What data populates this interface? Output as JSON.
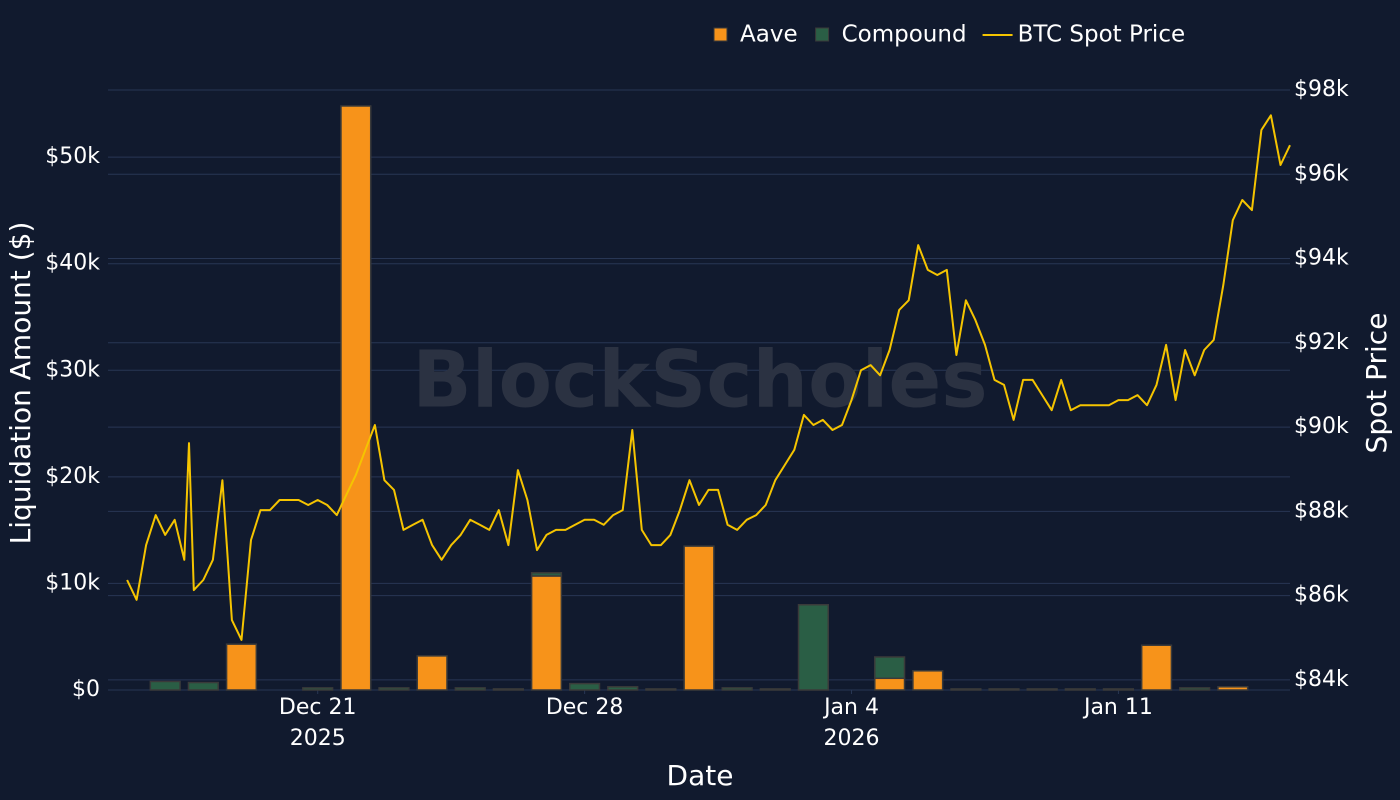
{
  "chart_data": {
    "type": "bar",
    "stacked": true,
    "xlabel": "Date",
    "ylabel": "Liquidation Amount ($)",
    "y2label": "Spot Price",
    "watermark": "BlockScholes",
    "legend": "top",
    "grid": true,
    "xlim": [
      "2025-12-15T12:00",
      "2026-01-15T12:00"
    ],
    "xticks": [
      {
        "value": "2025-12-21",
        "label": "Dec 21\n2025"
      },
      {
        "value": "2025-12-28",
        "label": "Dec 28"
      },
      {
        "value": "2026-01-04",
        "label": "Jan 4\n2026"
      },
      {
        "value": "2026-01-11",
        "label": "Jan 11"
      }
    ],
    "ylim": [
      0,
      56300
    ],
    "yticks": [
      {
        "value": 0,
        "label": "$0"
      },
      {
        "value": 10000,
        "label": "$10k"
      },
      {
        "value": 20000,
        "label": "$20k"
      },
      {
        "value": 30000,
        "label": "$30k"
      },
      {
        "value": 40000,
        "label": "$40k"
      },
      {
        "value": 50000,
        "label": "$50k"
      }
    ],
    "y2lim": [
      83760,
      98000
    ],
    "y2ticks": [
      {
        "value": 84000,
        "label": "$84k"
      },
      {
        "value": 86000,
        "label": "$86k"
      },
      {
        "value": 88000,
        "label": "$88k"
      },
      {
        "value": 90000,
        "label": "$90k"
      },
      {
        "value": 92000,
        "label": "$92k"
      },
      {
        "value": 94000,
        "label": "$94k"
      },
      {
        "value": 96000,
        "label": "$96k"
      },
      {
        "value": 98000,
        "label": "$98k"
      }
    ],
    "x": [
      "2025-12-17",
      "2025-12-18",
      "2025-12-19",
      "2025-12-20",
      "2025-12-21",
      "2025-12-22",
      "2025-12-23",
      "2025-12-24",
      "2025-12-25",
      "2025-12-26",
      "2025-12-27",
      "2025-12-28",
      "2025-12-29",
      "2025-12-30",
      "2025-12-31",
      "2026-01-01",
      "2026-01-02",
      "2026-01-03",
      "2026-01-04",
      "2026-01-05",
      "2026-01-06",
      "2026-01-07",
      "2026-01-08",
      "2026-01-09",
      "2026-01-10",
      "2026-01-11",
      "2026-01-12",
      "2026-01-13",
      "2026-01-14"
    ],
    "series": [
      {
        "name": "Aave",
        "color": "#f7931a",
        "values": [
          0,
          0,
          4300,
          0,
          0,
          54800,
          0,
          3200,
          0,
          0,
          10700,
          0,
          0,
          0,
          13500,
          0,
          0,
          0,
          0,
          1100,
          1800,
          0,
          0,
          0,
          0,
          0,
          4200,
          0,
          300
        ]
      },
      {
        "name": "Compound",
        "color": "#2a5e45",
        "values": [
          800,
          700,
          0,
          0,
          200,
          0,
          200,
          0,
          200,
          100,
          300,
          600,
          300,
          100,
          0,
          200,
          100,
          8000,
          0,
          2000,
          0,
          100,
          100,
          100,
          100,
          100,
          0,
          200,
          0
        ]
      },
      {
        "name": "BTC Spot Price",
        "type": "line",
        "axis": "y2",
        "color": "#f5c400",
        "x": [
          "2025-12-16T00:00",
          "2025-12-16T06:00",
          "2025-12-16T12:00",
          "2025-12-16T18:00",
          "2025-12-17T00:00",
          "2025-12-17T06:00",
          "2025-12-17T12:00",
          "2025-12-17T15:00",
          "2025-12-17T18:00",
          "2025-12-18T00:00",
          "2025-12-18T06:00",
          "2025-12-18T12:00",
          "2025-12-18T18:00",
          "2025-12-19T00:00",
          "2025-12-19T06:00",
          "2025-12-19T12:00",
          "2025-12-19T18:00",
          "2025-12-20T00:00",
          "2025-12-20T06:00",
          "2025-12-20T12:00",
          "2025-12-20T18:00",
          "2025-12-21T00:00",
          "2025-12-21T06:00",
          "2025-12-21T12:00",
          "2025-12-21T18:00",
          "2025-12-22T00:00",
          "2025-12-22T06:00",
          "2025-12-22T12:00",
          "2025-12-22T18:00",
          "2025-12-23T00:00",
          "2025-12-23T06:00",
          "2025-12-23T12:00",
          "2025-12-23T18:00",
          "2025-12-24T00:00",
          "2025-12-24T06:00",
          "2025-12-24T12:00",
          "2025-12-24T18:00",
          "2025-12-25T00:00",
          "2025-12-25T06:00",
          "2025-12-25T12:00",
          "2025-12-25T18:00",
          "2025-12-26T00:00",
          "2025-12-26T06:00",
          "2025-12-26T12:00",
          "2025-12-26T18:00",
          "2025-12-27T00:00",
          "2025-12-27T06:00",
          "2025-12-27T12:00",
          "2025-12-27T18:00",
          "2025-12-28T00:00",
          "2025-12-28T06:00",
          "2025-12-28T12:00",
          "2025-12-28T18:00",
          "2025-12-29T00:00",
          "2025-12-29T06:00",
          "2025-12-29T12:00",
          "2025-12-29T18:00",
          "2025-12-30T00:00",
          "2025-12-30T06:00",
          "2025-12-30T12:00",
          "2025-12-30T18:00",
          "2025-12-31T00:00",
          "2025-12-31T06:00",
          "2025-12-31T12:00",
          "2025-12-31T18:00",
          "2026-01-01T00:00",
          "2026-01-01T06:00",
          "2026-01-01T12:00",
          "2026-01-01T18:00",
          "2026-01-02T00:00",
          "2026-01-02T06:00",
          "2026-01-02T12:00",
          "2026-01-02T18:00",
          "2026-01-03T00:00",
          "2026-01-03T06:00",
          "2026-01-03T12:00",
          "2026-01-03T18:00",
          "2026-01-04T00:00",
          "2026-01-04T06:00",
          "2026-01-04T12:00",
          "2026-01-04T18:00",
          "2026-01-05T00:00",
          "2026-01-05T06:00",
          "2026-01-05T12:00",
          "2026-01-05T18:00",
          "2026-01-06T00:00",
          "2026-01-06T06:00",
          "2026-01-06T12:00",
          "2026-01-06T18:00",
          "2026-01-07T00:00",
          "2026-01-07T06:00",
          "2026-01-07T12:00",
          "2026-01-07T18:00",
          "2026-01-08T00:00",
          "2026-01-08T06:00",
          "2026-01-08T12:00",
          "2026-01-08T18:00",
          "2026-01-09T00:00",
          "2026-01-09T06:00",
          "2026-01-09T12:00",
          "2026-01-09T18:00",
          "2026-01-10T00:00",
          "2026-01-10T06:00",
          "2026-01-10T12:00",
          "2026-01-10T18:00",
          "2026-01-11T00:00",
          "2026-01-11T06:00",
          "2026-01-11T12:00",
          "2026-01-11T18:00",
          "2026-01-12T00:00",
          "2026-01-12T06:00",
          "2026-01-12T12:00",
          "2026-01-12T18:00",
          "2026-01-13T00:00",
          "2026-01-13T06:00",
          "2026-01-13T12:00",
          "2026-01-13T18:00",
          "2026-01-14T00:00",
          "2026-01-14T06:00",
          "2026-01-14T12:00",
          "2026-01-14T18:00",
          "2026-01-15T00:00",
          "2026-01-15T06:00",
          "2026-01-15T12:00"
        ],
        "values": [
          86370,
          85900,
          87200,
          87910,
          87440,
          87800,
          86850,
          89620,
          86130,
          86370,
          86850,
          88740,
          85420,
          84950,
          87320,
          88030,
          88030,
          88270,
          88270,
          88270,
          88150,
          88270,
          88150,
          87910,
          88390,
          88860,
          89460,
          90050,
          88740,
          88510,
          87560,
          87680,
          87800,
          87200,
          86850,
          87200,
          87440,
          87800,
          87680,
          87560,
          88030,
          87200,
          88980,
          88270,
          87080,
          87440,
          87560,
          87560,
          87680,
          87800,
          87800,
          87680,
          87910,
          88030,
          89930,
          87560,
          87200,
          87200,
          87440,
          88030,
          88740,
          88150,
          88510,
          88510,
          87680,
          87560,
          87800,
          87910,
          88150,
          88740,
          89100,
          89460,
          90290,
          90050,
          90170,
          89930,
          90050,
          90640,
          91350,
          91470,
          91230,
          91830,
          92780,
          93010,
          94320,
          93730,
          93610,
          93730,
          91710,
          93010,
          92540,
          91950,
          91120,
          91000,
          90170,
          91120,
          91120,
          90760,
          90400,
          91120,
          90400,
          90520,
          90520,
          90520,
          90520,
          90640,
          90640,
          90760,
          90520,
          91000,
          91950,
          90640,
          91830,
          91230,
          91830,
          92070,
          93370,
          94910,
          95390,
          95150,
          97050,
          97400,
          96220,
          96690
        ]
      }
    ]
  }
}
